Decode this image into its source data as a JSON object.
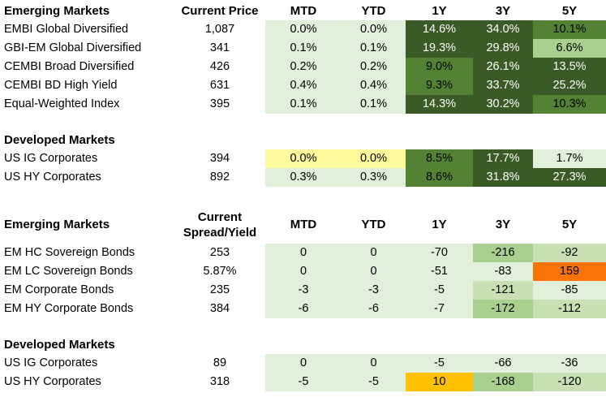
{
  "palette": {
    "light": "#e2efda",
    "light2": "#c9e0b5",
    "medium": "#a9d08e",
    "green": "#548235",
    "dark": "#3a5a26",
    "yellow": "#fffb9d",
    "amber": "#ffc000",
    "orange": "#fa7306"
  },
  "text_colors": {
    "on_dark": "#ffffff",
    "default": "#000000"
  },
  "tables": [
    {
      "value_header": "Current Price",
      "columns": [
        "MTD",
        "YTD",
        "1Y",
        "3Y",
        "5Y"
      ],
      "sections": [
        {
          "title": "Emerging Markets",
          "rows": [
            {
              "label": "EMBI Global Diversified",
              "value": "1,087",
              "cells": [
                {
                  "v": "0.0%",
                  "c": "light"
                },
                {
                  "v": "0.0%",
                  "c": "light"
                },
                {
                  "v": "14.6%",
                  "c": "dark"
                },
                {
                  "v": "34.0%",
                  "c": "dark"
                },
                {
                  "v": "10.1%",
                  "c": "green"
                }
              ]
            },
            {
              "label": "GBI-EM Global Diversified",
              "value": "341",
              "cells": [
                {
                  "v": "0.1%",
                  "c": "light"
                },
                {
                  "v": "0.1%",
                  "c": "light"
                },
                {
                  "v": "19.3%",
                  "c": "dark"
                },
                {
                  "v": "29.8%",
                  "c": "dark"
                },
                {
                  "v": "6.6%",
                  "c": "medium"
                }
              ]
            },
            {
              "label": "CEMBI Broad Diversified",
              "value": "426",
              "cells": [
                {
                  "v": "0.2%",
                  "c": "light"
                },
                {
                  "v": "0.2%",
                  "c": "light"
                },
                {
                  "v": "9.0%",
                  "c": "green"
                },
                {
                  "v": "26.1%",
                  "c": "dark"
                },
                {
                  "v": "13.5%",
                  "c": "dark"
                }
              ]
            },
            {
              "label": "CEMBI BD High Yield",
              "value": "631",
              "cells": [
                {
                  "v": "0.4%",
                  "c": "light"
                },
                {
                  "v": "0.4%",
                  "c": "light"
                },
                {
                  "v": "9.3%",
                  "c": "green"
                },
                {
                  "v": "33.7%",
                  "c": "dark"
                },
                {
                  "v": "25.2%",
                  "c": "dark"
                }
              ]
            },
            {
              "label": "Equal-Weighted Index",
              "value": "395",
              "cells": [
                {
                  "v": "0.1%",
                  "c": "light"
                },
                {
                  "v": "0.1%",
                  "c": "light"
                },
                {
                  "v": "14.3%",
                  "c": "dark"
                },
                {
                  "v": "30.2%",
                  "c": "dark"
                },
                {
                  "v": "10.3%",
                  "c": "green"
                }
              ]
            }
          ]
        },
        {
          "title": "Developed Markets",
          "rows": [
            {
              "label": "US IG Corporates",
              "value": "394",
              "cells": [
                {
                  "v": "0.0%",
                  "c": "yellow"
                },
                {
                  "v": "0.0%",
                  "c": "yellow"
                },
                {
                  "v": "8.5%",
                  "c": "green"
                },
                {
                  "v": "17.7%",
                  "c": "dark"
                },
                {
                  "v": "1.7%",
                  "c": "light"
                }
              ]
            },
            {
              "label": "US HY Corporates",
              "value": "892",
              "cells": [
                {
                  "v": "0.3%",
                  "c": "light"
                },
                {
                  "v": "0.3%",
                  "c": "light"
                },
                {
                  "v": "8.6%",
                  "c": "green"
                },
                {
                  "v": "31.8%",
                  "c": "dark"
                },
                {
                  "v": "27.3%",
                  "c": "dark"
                }
              ]
            }
          ]
        }
      ]
    },
    {
      "value_header": "Current\nSpread/Yield",
      "columns": [
        "MTD",
        "YTD",
        "1Y",
        "3Y",
        "5Y"
      ],
      "sections": [
        {
          "title": "Emerging Markets",
          "rows": [
            {
              "label": "EM HC Sovereign Bonds",
              "value": "253",
              "cells": [
                {
                  "v": "0",
                  "c": "light"
                },
                {
                  "v": "0",
                  "c": "light"
                },
                {
                  "v": "-70",
                  "c": "light"
                },
                {
                  "v": "-216",
                  "c": "medium"
                },
                {
                  "v": "-92",
                  "c": "light2"
                }
              ]
            },
            {
              "label": "EM LC Sovereign Bonds",
              "value": "5.87%",
              "cells": [
                {
                  "v": "0",
                  "c": "light"
                },
                {
                  "v": "0",
                  "c": "light"
                },
                {
                  "v": "-51",
                  "c": "light"
                },
                {
                  "v": "-83",
                  "c": "light"
                },
                {
                  "v": "159",
                  "c": "orange"
                }
              ]
            },
            {
              "label": "EM Corporate Bonds",
              "value": "235",
              "cells": [
                {
                  "v": "-3",
                  "c": "light"
                },
                {
                  "v": "-3",
                  "c": "light"
                },
                {
                  "v": "-5",
                  "c": "light"
                },
                {
                  "v": "-121",
                  "c": "light2"
                },
                {
                  "v": "-85",
                  "c": "light"
                }
              ]
            },
            {
              "label": "EM HY Corporate Bonds",
              "value": "384",
              "cells": [
                {
                  "v": "-6",
                  "c": "light"
                },
                {
                  "v": "-6",
                  "c": "light"
                },
                {
                  "v": "-7",
                  "c": "light"
                },
                {
                  "v": "-172",
                  "c": "medium"
                },
                {
                  "v": "-112",
                  "c": "light2"
                }
              ]
            }
          ]
        },
        {
          "title": "Developed Markets",
          "rows": [
            {
              "label": "US IG Corporates",
              "value": "89",
              "cells": [
                {
                  "v": "0",
                  "c": "light"
                },
                {
                  "v": "0",
                  "c": "light"
                },
                {
                  "v": "-5",
                  "c": "light"
                },
                {
                  "v": "-66",
                  "c": "light"
                },
                {
                  "v": "-36",
                  "c": "light"
                }
              ]
            },
            {
              "label": "US HY Corporates",
              "value": "318",
              "cells": [
                {
                  "v": "-5",
                  "c": "light"
                },
                {
                  "v": "-5",
                  "c": "light"
                },
                {
                  "v": "10",
                  "c": "amber"
                },
                {
                  "v": "-168",
                  "c": "medium"
                },
                {
                  "v": "-120",
                  "c": "light2"
                }
              ]
            }
          ]
        }
      ]
    }
  ]
}
